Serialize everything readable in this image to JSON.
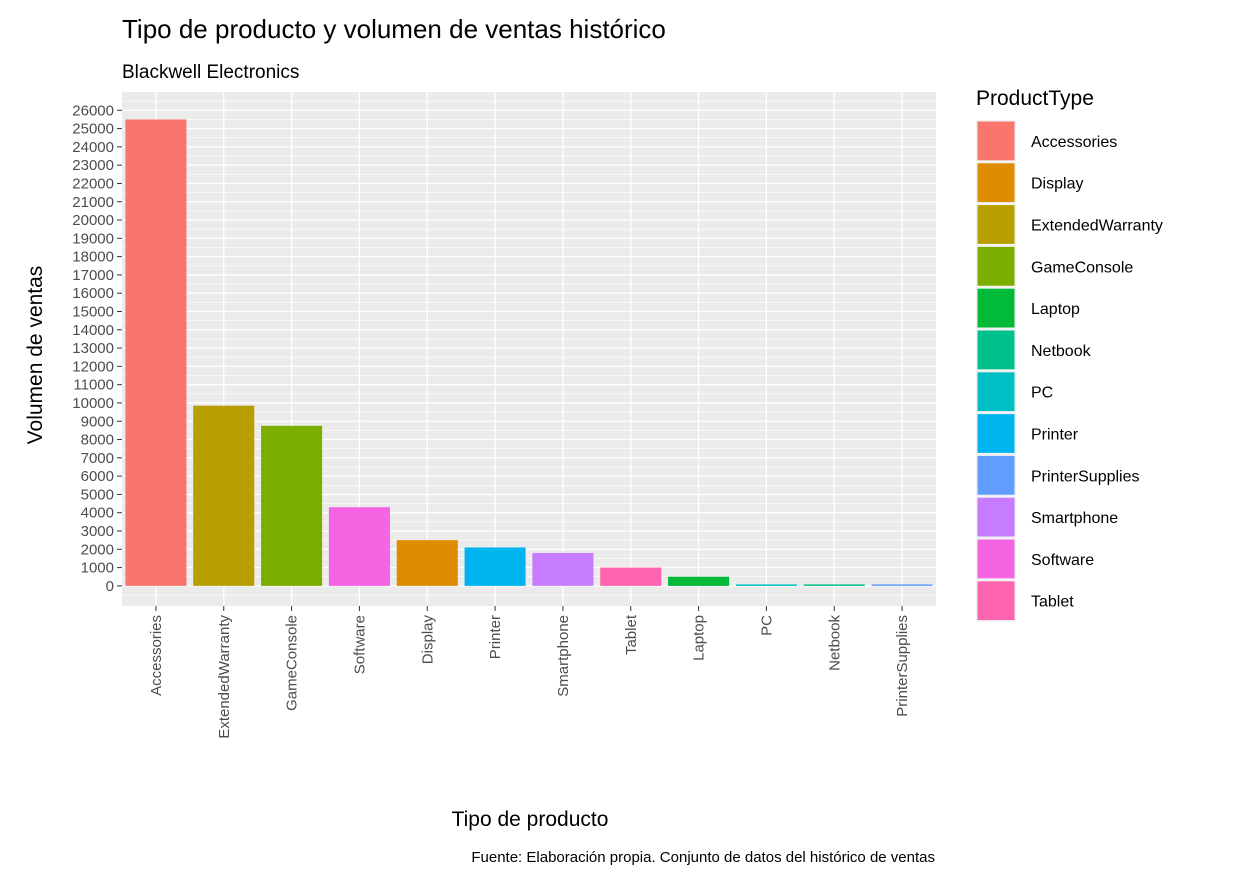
{
  "chart_data": {
    "type": "bar",
    "title": "Tipo de producto y volumen de ventas histórico",
    "subtitle": "Blackwell Electronics",
    "xlabel": "Tipo de producto",
    "ylabel": "Volumen de ventas",
    "caption": "Fuente: Elaboración propia. Conjunto de datos del histórico de ventas",
    "categories": [
      "Accessories",
      "ExtendedWarranty",
      "GameConsole",
      "Software",
      "Display",
      "Printer",
      "Smartphone",
      "Tablet",
      "Laptop",
      "PC",
      "Netbook",
      "PrinterSupplies"
    ],
    "values": [
      25500,
      9850,
      8750,
      4300,
      2500,
      2100,
      1800,
      1000,
      500,
      50,
      50,
      40
    ],
    "bar_colors": [
      "#F8766D",
      "#B79F00",
      "#7CAE00",
      "#F564E3",
      "#DE8C00",
      "#00B4F0",
      "#C77CFF",
      "#FF64B0",
      "#00BA38",
      "#00BFC4",
      "#00C08B",
      "#619CFF"
    ],
    "ylim": [
      -1100,
      27000
    ],
    "yticks": [
      0,
      1000,
      2000,
      3000,
      4000,
      5000,
      6000,
      7000,
      8000,
      9000,
      10000,
      11000,
      12000,
      13000,
      14000,
      15000,
      16000,
      17000,
      18000,
      19000,
      20000,
      21000,
      22000,
      23000,
      24000,
      25000,
      26000
    ],
    "grid": true,
    "panel_background": "#EBEBEB",
    "legend": {
      "title": "ProductType",
      "position": "right",
      "items": [
        {
          "label": "Accessories",
          "color": "#F8766D"
        },
        {
          "label": "Display",
          "color": "#DE8C00"
        },
        {
          "label": "ExtendedWarranty",
          "color": "#B79F00"
        },
        {
          "label": "GameConsole",
          "color": "#7CAE00"
        },
        {
          "label": "Laptop",
          "color": "#00BA38"
        },
        {
          "label": "Netbook",
          "color": "#00C08B"
        },
        {
          "label": "PC",
          "color": "#00BFC4"
        },
        {
          "label": "Printer",
          "color": "#00B4F0"
        },
        {
          "label": "PrinterSupplies",
          "color": "#619CFF"
        },
        {
          "label": "Smartphone",
          "color": "#C77CFF"
        },
        {
          "label": "Software",
          "color": "#F564E3"
        },
        {
          "label": "Tablet",
          "color": "#FF64B0"
        }
      ]
    }
  }
}
